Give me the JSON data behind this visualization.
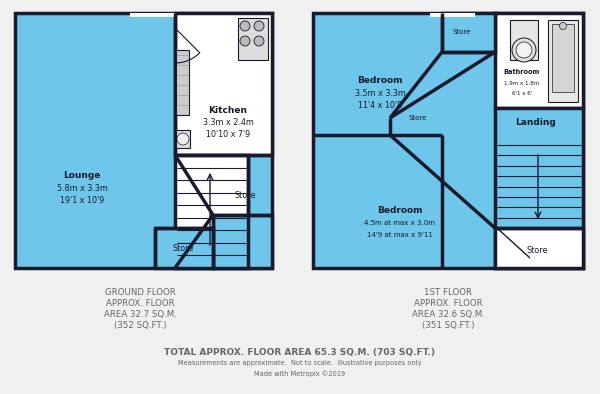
{
  "bg_color": "#f0f0f0",
  "wall_color": "#1a1a2e",
  "room_fill": "#6ec6ea",
  "white": "#ffffff",
  "ground_floor_label": "GROUND FLOOR\nAPPROX. FLOOR\nAREA 32.7 SQ.M.\n(352 SQ.FT.)",
  "first_floor_label": "1ST FLOOR\nAPPROX. FLOOR\nAREA 32.6 SQ.M.\n(351 SQ.FT.)",
  "total_text": "TOTAL APPROX. FLOOR AREA 65.3 SQ.M. (703 SQ.FT.)",
  "meas_text": "Measurements are approximate.  Not to scale.  Illustrative purposes only",
  "made_text": "Made with Metropix ©2019",
  "text_color": "#666666",
  "label_color": "#1a1a2e"
}
